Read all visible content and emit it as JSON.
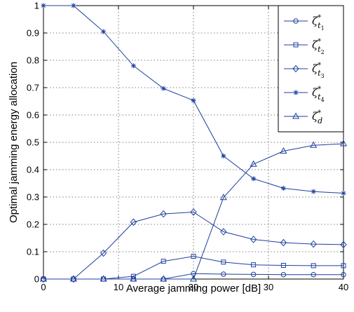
{
  "chart_data": {
    "type": "line",
    "title": "",
    "xlabel": "Average jamming power [dB]",
    "ylabel": "Optimal jamming energy allocation",
    "xlim": [
      0,
      40
    ],
    "ylim": [
      0,
      1
    ],
    "x_ticks": [
      "0",
      "10",
      "20",
      "30",
      "40"
    ],
    "y_ticks": [
      "0",
      "0.1",
      "0.2",
      "0.3",
      "0.4",
      "0.5",
      "0.6",
      "0.7",
      "0.8",
      "0.9",
      "1"
    ],
    "grid": true,
    "legend_position": "top-right",
    "x": [
      0,
      4,
      8,
      12,
      16,
      20,
      24,
      28,
      32,
      36,
      40
    ],
    "series": [
      {
        "name": "ζ*t1",
        "marker": "circle",
        "values": [
          0,
          0,
          0,
          0,
          0,
          0.02,
          0.018,
          0.017,
          0.016,
          0.016,
          0.016
        ]
      },
      {
        "name": "ζ*t2",
        "marker": "square",
        "values": [
          0,
          0,
          0,
          0.01,
          0.065,
          0.083,
          0.062,
          0.052,
          0.05,
          0.049,
          0.049
        ]
      },
      {
        "name": "ζ*t3",
        "marker": "diamond",
        "values": [
          0,
          0,
          0.095,
          0.208,
          0.238,
          0.245,
          0.173,
          0.145,
          0.133,
          0.128,
          0.126
        ]
      },
      {
        "name": "ζ*t4",
        "marker": "star",
        "values": [
          1,
          1,
          0.905,
          0.78,
          0.697,
          0.653,
          0.45,
          0.367,
          0.332,
          0.32,
          0.314
        ]
      },
      {
        "name": "ζ*d",
        "marker": "triangle",
        "values": [
          0,
          0,
          0,
          0,
          0,
          0,
          0.298,
          0.42,
          0.468,
          0.489,
          0.495
        ]
      }
    ],
    "line_color": "#1f3f9f"
  }
}
